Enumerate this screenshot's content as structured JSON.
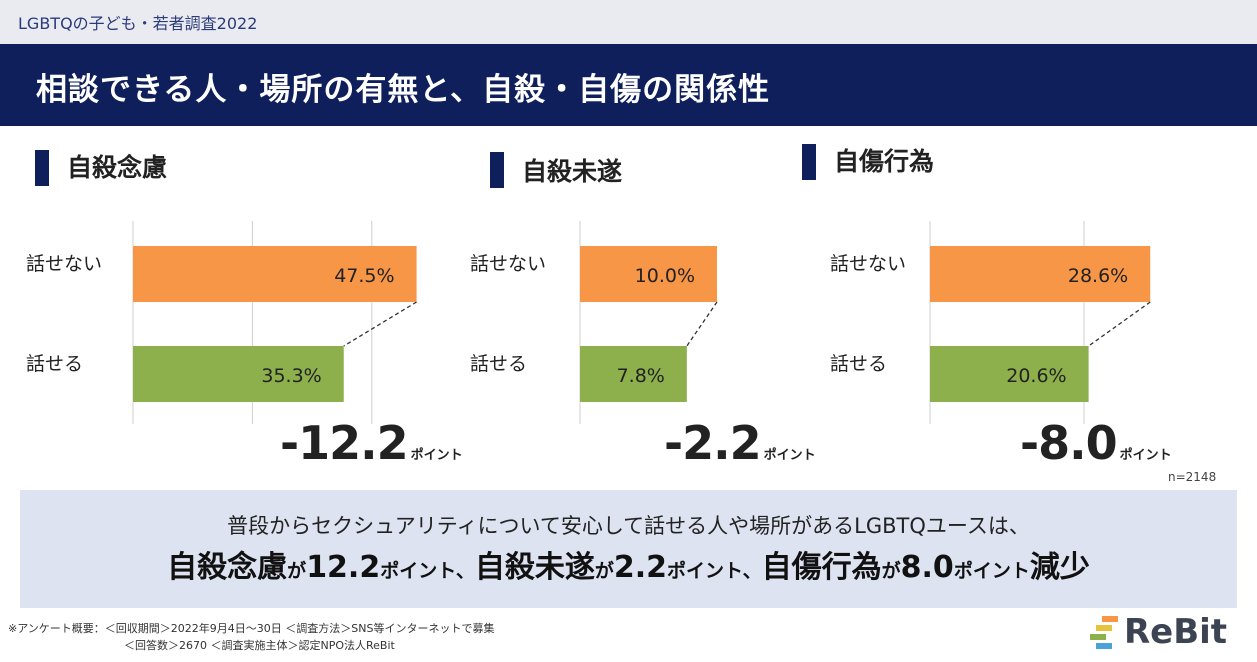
{
  "header": {
    "survey_label": "LGBTQの子ども・若者調査2022",
    "title": "相談できる人・場所の有無と、自殺・自傷の関係性"
  },
  "chart_data": [
    {
      "type": "bar",
      "title": "自殺念慮",
      "categories": [
        "話せない",
        "話せる"
      ],
      "values": [
        47.5,
        35.3
      ],
      "value_labels": [
        "47.5%",
        "35.3%"
      ],
      "colors": [
        "#f79646",
        "#8db04c"
      ],
      "orientation": "horizontal",
      "grid": true,
      "difference": {
        "value": "-12.2",
        "unit": "ポイント"
      }
    },
    {
      "type": "bar",
      "title": "自殺未遂",
      "categories": [
        "話せない",
        "話せる"
      ],
      "values": [
        10.0,
        7.8
      ],
      "value_labels": [
        "10.0%",
        "7.8%"
      ],
      "colors": [
        "#f79646",
        "#8db04c"
      ],
      "orientation": "horizontal",
      "grid": true,
      "difference": {
        "value": "-2.2",
        "unit": "ポイント"
      }
    },
    {
      "type": "bar",
      "title": "自傷行為",
      "categories": [
        "話せない",
        "話せる"
      ],
      "values": [
        28.6,
        20.6
      ],
      "value_labels": [
        "28.6%",
        "20.6%"
      ],
      "colors": [
        "#f79646",
        "#8db04c"
      ],
      "orientation": "horizontal",
      "grid": true,
      "difference": {
        "value": "-8.0",
        "unit": "ポイント"
      }
    }
  ],
  "sample_note": "n=2148",
  "summary": {
    "line1": "普段からセクシュアリティについて安心して話せる人や場所があるLGBTQユースは、",
    "line2_parts": [
      {
        "text": "自殺念慮",
        "size": "big"
      },
      {
        "text": "が",
        "size": "small"
      },
      {
        "text": "12.2",
        "size": "big"
      },
      {
        "text": "ポイント、",
        "size": "small"
      },
      {
        "text": "自殺未遂",
        "size": "big"
      },
      {
        "text": "が",
        "size": "small"
      },
      {
        "text": "2.2",
        "size": "big"
      },
      {
        "text": "ポイント、",
        "size": "small"
      },
      {
        "text": "自傷行為",
        "size": "big"
      },
      {
        "text": "が",
        "size": "small"
      },
      {
        "text": "8.0",
        "size": "big"
      },
      {
        "text": "ポイント",
        "size": "small"
      },
      {
        "text": "減少",
        "size": "big"
      }
    ]
  },
  "footnote": {
    "line1": "※アンケート概要：＜回収期間＞2022年9月4日～30日 ＜調査方法＞SNS等インターネットで募集",
    "line2": "＜回答数＞2670 ＜調査実施主体＞認定NPO法人ReBit"
  },
  "logo": {
    "text": "ReBit"
  },
  "colors": {
    "navy": "#0f1f5c",
    "orange": "#f79646",
    "green": "#8db04c",
    "summary_bg": "#dde3f1"
  }
}
